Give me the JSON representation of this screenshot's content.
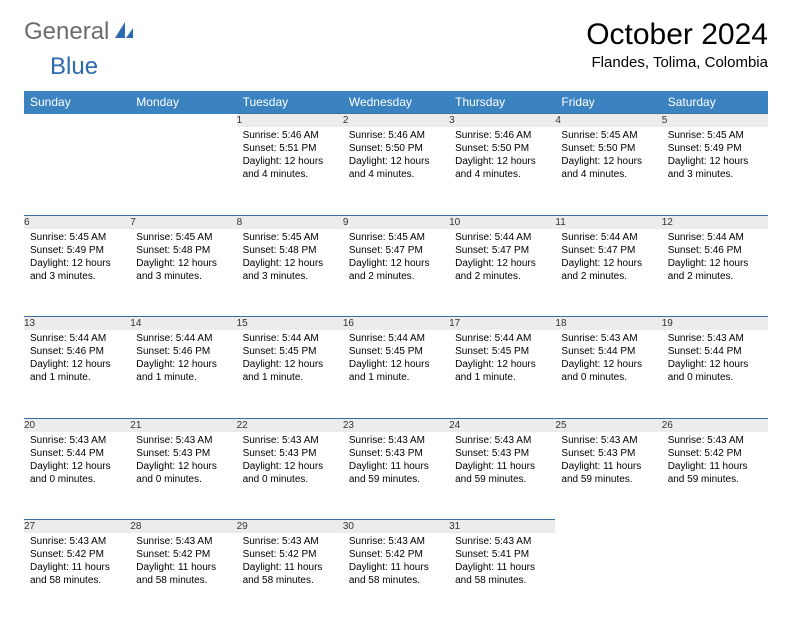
{
  "logo": {
    "general": "General",
    "blue": "Blue"
  },
  "title": "October 2024",
  "location": "Flandes, Tolima, Colombia",
  "colors": {
    "header_bg": "#3b83c0",
    "header_text": "#ffffff",
    "daynum_bg": "#ececec",
    "daynum_border": "#3b6fa3",
    "logo_general": "#6b6b6b",
    "logo_blue": "#2b6bb0"
  },
  "day_headers": [
    "Sunday",
    "Monday",
    "Tuesday",
    "Wednesday",
    "Thursday",
    "Friday",
    "Saturday"
  ],
  "weeks": [
    [
      null,
      null,
      {
        "n": "1",
        "sr": "5:46 AM",
        "ss": "5:51 PM",
        "dl": "12 hours and 4 minutes."
      },
      {
        "n": "2",
        "sr": "5:46 AM",
        "ss": "5:50 PM",
        "dl": "12 hours and 4 minutes."
      },
      {
        "n": "3",
        "sr": "5:46 AM",
        "ss": "5:50 PM",
        "dl": "12 hours and 4 minutes."
      },
      {
        "n": "4",
        "sr": "5:45 AM",
        "ss": "5:50 PM",
        "dl": "12 hours and 4 minutes."
      },
      {
        "n": "5",
        "sr": "5:45 AM",
        "ss": "5:49 PM",
        "dl": "12 hours and 3 minutes."
      }
    ],
    [
      {
        "n": "6",
        "sr": "5:45 AM",
        "ss": "5:49 PM",
        "dl": "12 hours and 3 minutes."
      },
      {
        "n": "7",
        "sr": "5:45 AM",
        "ss": "5:48 PM",
        "dl": "12 hours and 3 minutes."
      },
      {
        "n": "8",
        "sr": "5:45 AM",
        "ss": "5:48 PM",
        "dl": "12 hours and 3 minutes."
      },
      {
        "n": "9",
        "sr": "5:45 AM",
        "ss": "5:47 PM",
        "dl": "12 hours and 2 minutes."
      },
      {
        "n": "10",
        "sr": "5:44 AM",
        "ss": "5:47 PM",
        "dl": "12 hours and 2 minutes."
      },
      {
        "n": "11",
        "sr": "5:44 AM",
        "ss": "5:47 PM",
        "dl": "12 hours and 2 minutes."
      },
      {
        "n": "12",
        "sr": "5:44 AM",
        "ss": "5:46 PM",
        "dl": "12 hours and 2 minutes."
      }
    ],
    [
      {
        "n": "13",
        "sr": "5:44 AM",
        "ss": "5:46 PM",
        "dl": "12 hours and 1 minute."
      },
      {
        "n": "14",
        "sr": "5:44 AM",
        "ss": "5:46 PM",
        "dl": "12 hours and 1 minute."
      },
      {
        "n": "15",
        "sr": "5:44 AM",
        "ss": "5:45 PM",
        "dl": "12 hours and 1 minute."
      },
      {
        "n": "16",
        "sr": "5:44 AM",
        "ss": "5:45 PM",
        "dl": "12 hours and 1 minute."
      },
      {
        "n": "17",
        "sr": "5:44 AM",
        "ss": "5:45 PM",
        "dl": "12 hours and 1 minute."
      },
      {
        "n": "18",
        "sr": "5:43 AM",
        "ss": "5:44 PM",
        "dl": "12 hours and 0 minutes."
      },
      {
        "n": "19",
        "sr": "5:43 AM",
        "ss": "5:44 PM",
        "dl": "12 hours and 0 minutes."
      }
    ],
    [
      {
        "n": "20",
        "sr": "5:43 AM",
        "ss": "5:44 PM",
        "dl": "12 hours and 0 minutes."
      },
      {
        "n": "21",
        "sr": "5:43 AM",
        "ss": "5:43 PM",
        "dl": "12 hours and 0 minutes."
      },
      {
        "n": "22",
        "sr": "5:43 AM",
        "ss": "5:43 PM",
        "dl": "12 hours and 0 minutes."
      },
      {
        "n": "23",
        "sr": "5:43 AM",
        "ss": "5:43 PM",
        "dl": "11 hours and 59 minutes."
      },
      {
        "n": "24",
        "sr": "5:43 AM",
        "ss": "5:43 PM",
        "dl": "11 hours and 59 minutes."
      },
      {
        "n": "25",
        "sr": "5:43 AM",
        "ss": "5:43 PM",
        "dl": "11 hours and 59 minutes."
      },
      {
        "n": "26",
        "sr": "5:43 AM",
        "ss": "5:42 PM",
        "dl": "11 hours and 59 minutes."
      }
    ],
    [
      {
        "n": "27",
        "sr": "5:43 AM",
        "ss": "5:42 PM",
        "dl": "11 hours and 58 minutes."
      },
      {
        "n": "28",
        "sr": "5:43 AM",
        "ss": "5:42 PM",
        "dl": "11 hours and 58 minutes."
      },
      {
        "n": "29",
        "sr": "5:43 AM",
        "ss": "5:42 PM",
        "dl": "11 hours and 58 minutes."
      },
      {
        "n": "30",
        "sr": "5:43 AM",
        "ss": "5:42 PM",
        "dl": "11 hours and 58 minutes."
      },
      {
        "n": "31",
        "sr": "5:43 AM",
        "ss": "5:41 PM",
        "dl": "11 hours and 58 minutes."
      },
      null,
      null
    ]
  ],
  "labels": {
    "sunrise": "Sunrise:",
    "sunset": "Sunset:",
    "daylight": "Daylight:"
  }
}
